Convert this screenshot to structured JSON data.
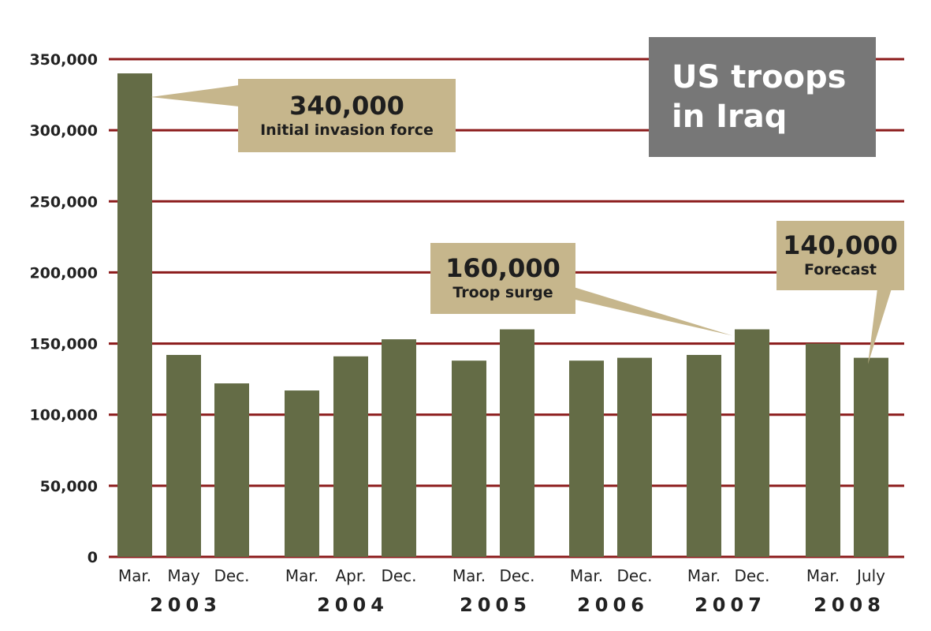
{
  "title": {
    "line1": "US troops",
    "line2": "in Iraq"
  },
  "colors": {
    "bar": "#646c46",
    "grid": "#8b1a1a",
    "callout": "#c6b68c",
    "title_bg": "#777777"
  },
  "chart_data": {
    "type": "bar",
    "title": "US troops in Iraq",
    "xlabel": "",
    "ylabel": "",
    "ylim": [
      0,
      350000
    ],
    "yticks": [
      0,
      50000,
      100000,
      150000,
      200000,
      250000,
      300000,
      350000
    ],
    "ytick_labels": [
      "0",
      "50,000",
      "100,000",
      "150,000",
      "200,000",
      "250,000",
      "300,000",
      "350,000"
    ],
    "grid": true,
    "categories": [
      "Mar.",
      "May",
      "Dec.",
      "Mar.",
      "Apr.",
      "Dec.",
      "Mar.",
      "Dec.",
      "Mar.",
      "Dec.",
      "Mar.",
      "Dec.",
      "Mar.",
      "July"
    ],
    "years": [
      "2003",
      "2004",
      "2005",
      "2006",
      "2007",
      "2008"
    ],
    "year_index": [
      0,
      0,
      0,
      1,
      1,
      1,
      2,
      2,
      3,
      3,
      4,
      4,
      5,
      5
    ],
    "values": [
      340000,
      142000,
      122000,
      117000,
      141000,
      153000,
      138000,
      160000,
      138000,
      140000,
      142000,
      160000,
      150000,
      140000
    ],
    "annotations": [
      {
        "value": "340,000",
        "label": "Initial invasion force",
        "bar_index": 0
      },
      {
        "value": "160,000",
        "label": "Troop surge",
        "bar_index": 11
      },
      {
        "value": "140,000",
        "label": "Forecast",
        "bar_index": 13
      }
    ]
  }
}
